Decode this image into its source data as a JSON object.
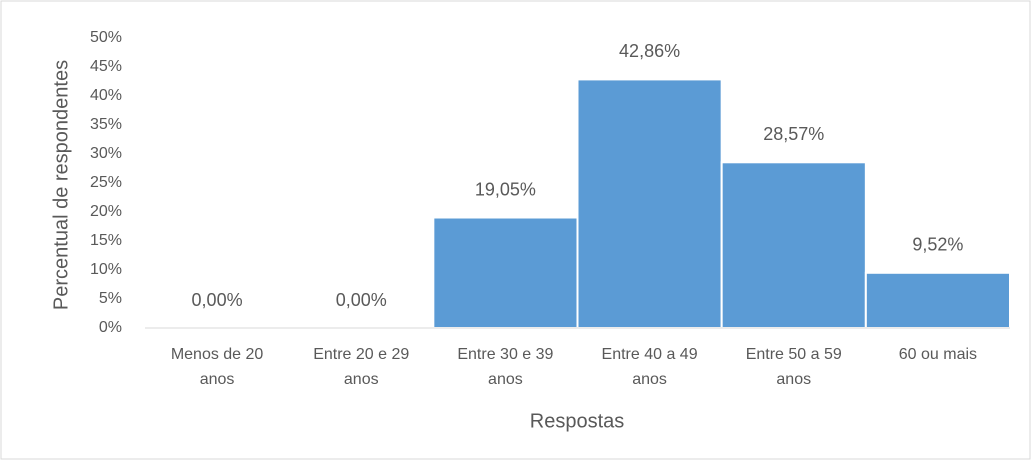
{
  "chart_data": {
    "type": "bar",
    "xlabel": "Respostas",
    "ylabel": "Percentual de respondentes",
    "categories": [
      "Menos de 20 anos",
      "Entre 20 e 29 anos",
      "Entre 30 e 39 anos",
      "Entre 40 a 49 anos",
      "Entre 50 a 59 anos",
      "60 ou mais"
    ],
    "values": [
      0,
      0,
      19.05,
      42.86,
      28.57,
      9.52
    ],
    "value_labels": [
      "0,00%",
      "0,00%",
      "19,05%",
      "42,86%",
      "28,57%",
      "9,52%"
    ],
    "color": "#5b9bd5",
    "ylim": [
      0,
      50
    ],
    "yticks": [
      {
        "value": 0,
        "label": "0%"
      },
      {
        "value": 5,
        "label": "5%"
      },
      {
        "value": 10,
        "label": "10%"
      },
      {
        "value": 15,
        "label": "15%"
      },
      {
        "value": 20,
        "label": "20%"
      },
      {
        "value": 25,
        "label": "25%"
      },
      {
        "value": 30,
        "label": "30%"
      },
      {
        "value": 35,
        "label": "35%"
      },
      {
        "value": 40,
        "label": "40%"
      },
      {
        "value": 45,
        "label": "45%"
      },
      {
        "value": 50,
        "label": "50%"
      }
    ],
    "grid": false
  }
}
